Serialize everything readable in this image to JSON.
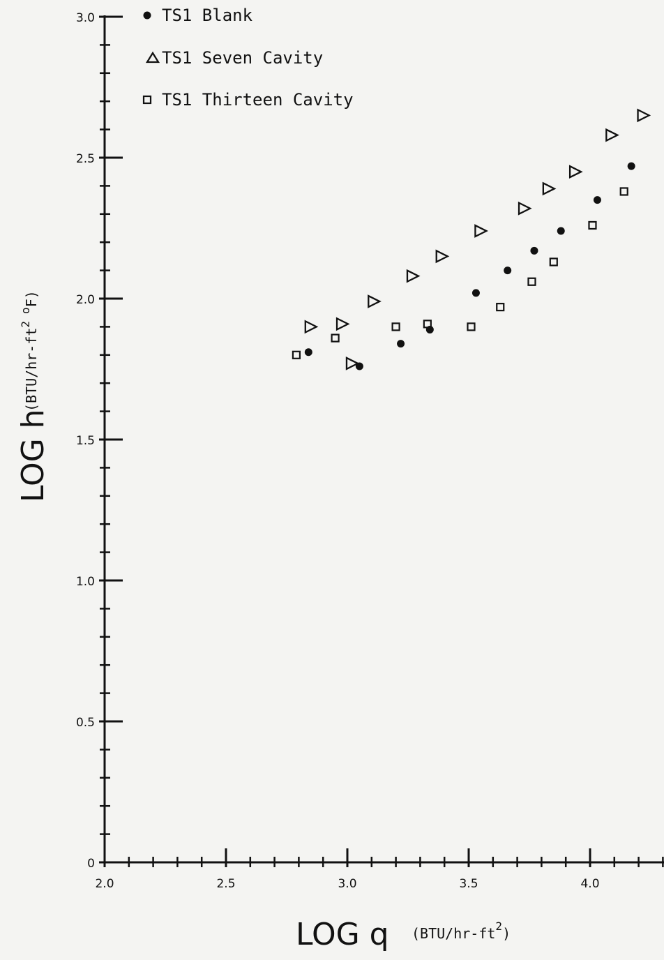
{
  "chart_data": {
    "type": "scatter",
    "xlabel": "LOG q",
    "xunit": "(BTU/hr-ft",
    "xunit_sup": "2",
    "xunit_close": ")",
    "ylabel": "LOG h",
    "yunit": "(BTU/hr-ft",
    "yunit_sup": "2",
    "yunit_tail": "o",
    "yunit_F": "F)",
    "xlim": [
      2.0,
      4.3
    ],
    "ylim": [
      0,
      3.0
    ],
    "grid": false,
    "legend_position": "top-left",
    "x_ticks": [
      {
        "value": 2.0,
        "label": "2.0"
      },
      {
        "value": 2.5,
        "label": "2.5"
      },
      {
        "value": 3.0,
        "label": "3.0"
      },
      {
        "value": 3.5,
        "label": "3.5"
      },
      {
        "value": 4.0,
        "label": "4.0"
      }
    ],
    "y_ticks": [
      {
        "value": 0,
        "label": "0"
      },
      {
        "value": 0.5,
        "label": "0.5"
      },
      {
        "value": 1.0,
        "label": "1.0"
      },
      {
        "value": 1.5,
        "label": "1.5"
      },
      {
        "value": 2.0,
        "label": "2.0"
      },
      {
        "value": 2.5,
        "label": "2.5"
      },
      {
        "value": 3.0,
        "label": "3.0"
      }
    ],
    "series": [
      {
        "name": "TS1  Blank",
        "marker": "filled-circle",
        "points": [
          [
            2.84,
            1.81
          ],
          [
            3.05,
            1.76
          ],
          [
            3.22,
            1.84
          ],
          [
            3.34,
            1.89
          ],
          [
            3.53,
            2.02
          ],
          [
            3.66,
            2.1
          ],
          [
            3.77,
            2.17
          ],
          [
            3.88,
            2.24
          ],
          [
            4.03,
            2.35
          ],
          [
            4.17,
            2.47
          ]
        ]
      },
      {
        "name": "TS1  Seven Cavity",
        "marker": "open-triangle",
        "points": [
          [
            2.85,
            1.9
          ],
          [
            2.98,
            1.91
          ],
          [
            3.02,
            1.77
          ],
          [
            3.11,
            1.99
          ],
          [
            3.27,
            2.08
          ],
          [
            3.39,
            2.15
          ],
          [
            3.55,
            2.24
          ],
          [
            3.73,
            2.32
          ],
          [
            3.83,
            2.39
          ],
          [
            3.94,
            2.45
          ],
          [
            4.09,
            2.58
          ],
          [
            4.22,
            2.65
          ]
        ]
      },
      {
        "name": "TS1  Thirteen Cavity",
        "marker": "open-square",
        "points": [
          [
            2.79,
            1.8
          ],
          [
            2.95,
            1.86
          ],
          [
            3.2,
            1.9
          ],
          [
            3.33,
            1.91
          ],
          [
            3.51,
            1.9
          ],
          [
            3.63,
            1.97
          ],
          [
            3.76,
            2.06
          ],
          [
            3.85,
            2.13
          ],
          [
            4.01,
            2.26
          ],
          [
            4.14,
            2.38
          ]
        ]
      }
    ]
  }
}
